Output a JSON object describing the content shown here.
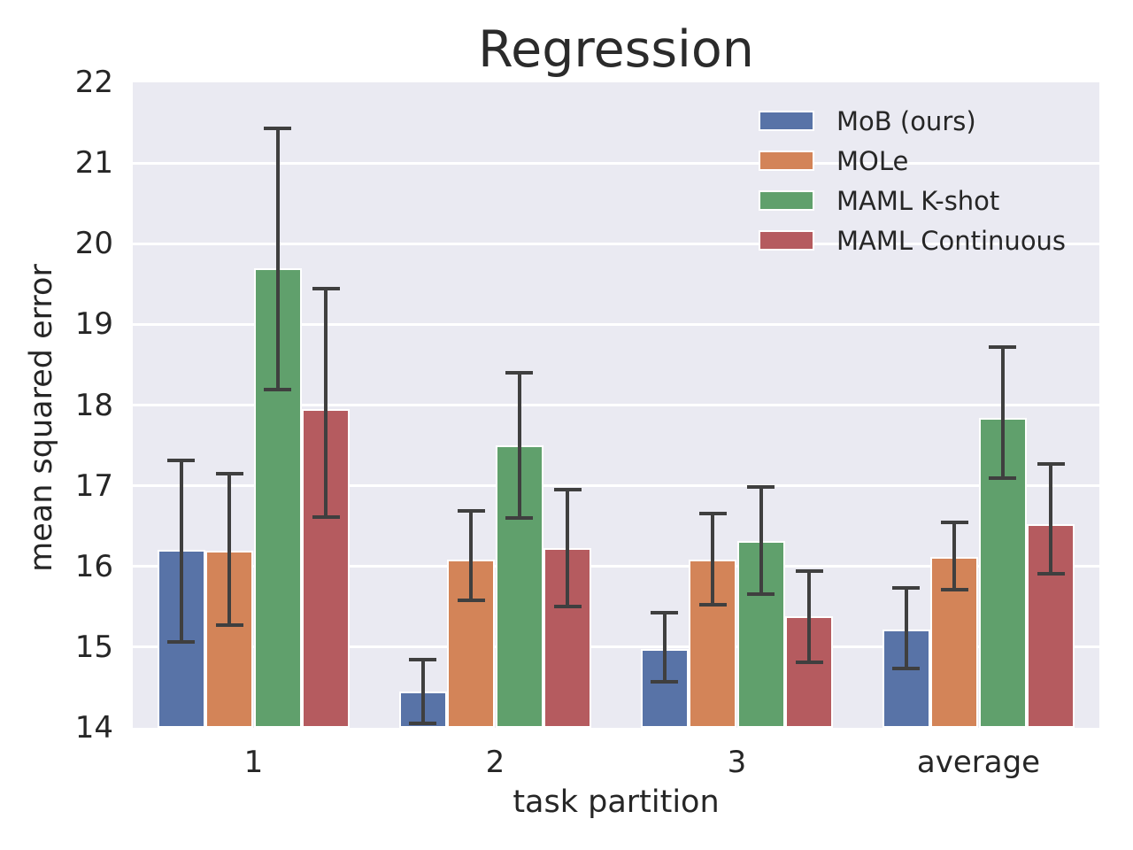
{
  "title": "Regression",
  "axes": {
    "xlabel": "task partition",
    "ylabel": "mean squared error",
    "yticks": [
      22,
      21,
      20,
      19,
      18,
      17,
      16,
      15,
      14
    ],
    "ylim": [
      14,
      22
    ],
    "grid": "horizontal-white-on-lavender",
    "background_color": "#eaeaf2",
    "grid_color": "#ffffff",
    "text_color": "#262626",
    "errorbar_color": "#3f3f3f"
  },
  "legend": {
    "position": "upper-right-inside",
    "entries": [
      "MoB (ours)",
      "MOLe",
      "MAML K-shot",
      "MAML Continuous"
    ]
  },
  "chart_data": {
    "type": "bar",
    "title": "Regression",
    "xlabel": "task partition",
    "ylabel": "mean squared error",
    "ylim": [
      14,
      22
    ],
    "categories": [
      "1",
      "2",
      "3",
      "average"
    ],
    "series": [
      {
        "name": "MoB (ours)",
        "color": "#5873a7",
        "values": [
          16.21,
          14.45,
          14.98,
          15.22
        ],
        "err_lo": [
          15.06,
          14.05,
          14.57,
          14.74
        ],
        "err_hi": [
          17.31,
          14.84,
          15.43,
          15.73
        ]
      },
      {
        "name": "MOLe",
        "color": "#d38458",
        "values": [
          16.19,
          16.08,
          16.08,
          16.12
        ],
        "err_lo": [
          15.27,
          15.58,
          15.52,
          15.71
        ],
        "err_hi": [
          17.15,
          16.69,
          16.66,
          16.55
        ]
      },
      {
        "name": "MAML K-shot",
        "color": "#60a06c",
        "values": [
          19.7,
          17.5,
          16.32,
          17.84
        ],
        "err_lo": [
          18.19,
          16.6,
          15.66,
          17.09
        ],
        "err_hi": [
          21.43,
          18.4,
          16.99,
          18.72
        ]
      },
      {
        "name": "MAML Continuous",
        "color": "#b55b5f",
        "values": [
          17.95,
          16.23,
          15.38,
          16.52
        ],
        "err_lo": [
          16.61,
          15.5,
          14.81,
          15.91
        ],
        "err_hi": [
          19.44,
          16.95,
          15.94,
          17.27
        ]
      }
    ]
  }
}
